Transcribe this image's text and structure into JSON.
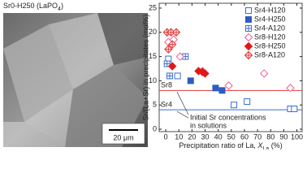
{
  "image": {
    "label": [
      "Sr0-H250 (LaPO",
      "4",
      ")"
    ],
    "scale_bar": "20 μm"
  },
  "chart_data": {
    "type": "scatter",
    "ylabel": "Sr/(La+Sr) in precipitates (mol%)",
    "xlabel": [
      "Precipitation ratio of La, ",
      "X",
      "La",
      " (%)"
    ],
    "xlim": [
      -5,
      104
    ],
    "ylim": [
      -0.5,
      26
    ],
    "xticks": [
      0,
      10,
      20,
      30,
      40,
      50,
      60,
      70,
      80,
      90,
      100
    ],
    "yticks": [
      0,
      5,
      10,
      15,
      20,
      25
    ],
    "legend": "top-right",
    "series": [
      {
        "name": "Sr4-H120",
        "color": "#3a6fd0",
        "marker": "square",
        "fill": "open",
        "x": [
          2,
          9,
          52,
          62,
          95,
          98
        ],
        "values": [
          14.5,
          11,
          5,
          5.7,
          4.2,
          4.2
        ]
      },
      {
        "name": "Sr4-H250",
        "color": "#2d5cc0",
        "marker": "square",
        "fill": "filled",
        "x": [
          19,
          38,
          43
        ],
        "values": [
          10,
          8.5,
          8
        ]
      },
      {
        "name": "Sr4-A120",
        "color": "#3a6fd0",
        "marker": "square",
        "fill": "crossed",
        "x": [
          1,
          3,
          15
        ],
        "values": [
          13.5,
          11,
          15
        ]
      },
      {
        "name": "Sr8-H120",
        "color": "#f06090",
        "marker": "diamond",
        "fill": "open",
        "x": [
          2,
          6,
          11,
          28,
          48,
          75,
          95
        ],
        "values": [
          18,
          18.5,
          15,
          12,
          9,
          11.5,
          8.5
        ]
      },
      {
        "name": "Sr8-H250",
        "color": "#e01818",
        "marker": "diamond",
        "fill": "filled",
        "x": [
          5,
          25,
          28,
          30
        ],
        "values": [
          13,
          12,
          11.8,
          11.5
        ]
      },
      {
        "name": "Sr8-A120",
        "color": "#e03030",
        "marker": "diamond",
        "fill": "crossed",
        "x": [
          1,
          4,
          8,
          2,
          5
        ],
        "values": [
          20,
          20,
          20,
          16.5,
          17.5
        ]
      }
    ],
    "reference_lines": [
      {
        "label": "Sr8",
        "value": 8,
        "color": "#e83a3a"
      },
      {
        "label": "Sr4",
        "value": 4,
        "color": "#3a6fd0"
      }
    ],
    "annotation": [
      "Initial Sr concentrations",
      "in solutions"
    ]
  }
}
